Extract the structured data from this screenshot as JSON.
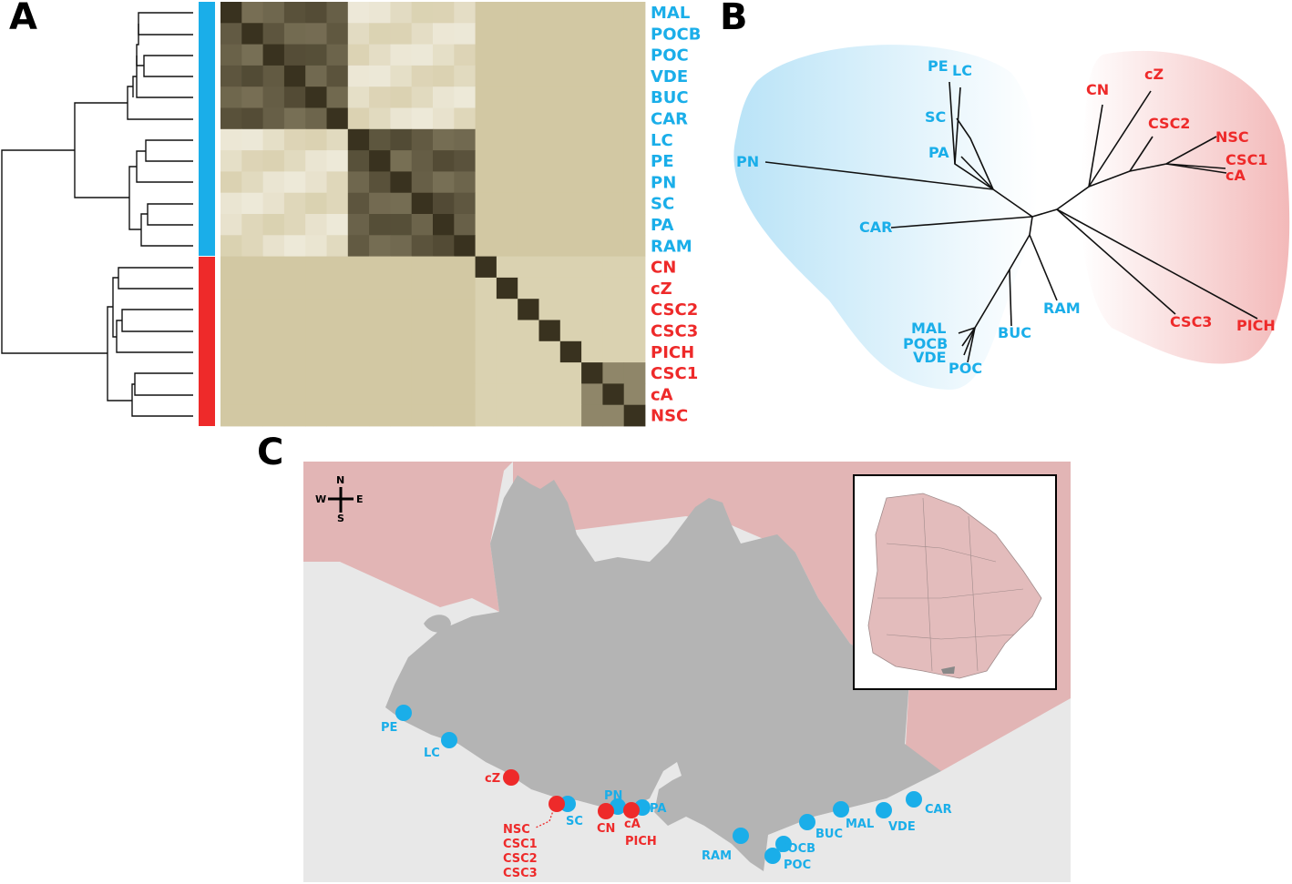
{
  "panels": {
    "a": "A",
    "b": "B",
    "c": "C"
  },
  "colors": {
    "blue_group": "#1aaee9",
    "red_group": "#ee2a2a",
    "heat_low": "#d5cba6",
    "heat_high": "#39321f",
    "blue_hull": "#d5eefa",
    "red_hull": "#f7d4d4",
    "land": "#b4b4b4",
    "sea": "#e8e8e8",
    "neighbor": "#e2b5b5"
  },
  "heatmap": {
    "labels": [
      "MAL",
      "POCB",
      "POC",
      "VDE",
      "BUC",
      "CAR",
      "LC",
      "PE",
      "PN",
      "SC",
      "PA",
      "RAM",
      "CN",
      "cZ",
      "CSC2",
      "CSC3",
      "PICH",
      "CSC1",
      "cA",
      "NSC"
    ],
    "groups": [
      "blue",
      "blue",
      "blue",
      "blue",
      "blue",
      "blue",
      "blue",
      "blue",
      "blue",
      "blue",
      "blue",
      "blue",
      "red",
      "red",
      "red",
      "red",
      "red",
      "red",
      "red",
      "red"
    ]
  },
  "tree": {
    "blue_tips": [
      "PE",
      "LC",
      "SC",
      "PA",
      "PN",
      "CAR",
      "RAM",
      "BUC",
      "MAL",
      "POCB",
      "VDE",
      "POC"
    ],
    "red_tips": [
      "CN",
      "cZ",
      "CSC2",
      "NSC",
      "CSC1",
      "cA",
      "CSC3",
      "PICH"
    ]
  },
  "map": {
    "compass": {
      "n": "N",
      "s": "S",
      "e": "E",
      "w": "W"
    },
    "blue_sites": [
      "PE",
      "LC",
      "SC",
      "PN",
      "PA",
      "RAM",
      "POC",
      "POCB",
      "BUC",
      "MAL",
      "VDE",
      "CAR"
    ],
    "red_sites": [
      "cZ",
      "CN",
      "cA",
      "PICH"
    ],
    "red_cluster_labels": [
      "NSC",
      "CSC1",
      "CSC2",
      "CSC3"
    ]
  }
}
